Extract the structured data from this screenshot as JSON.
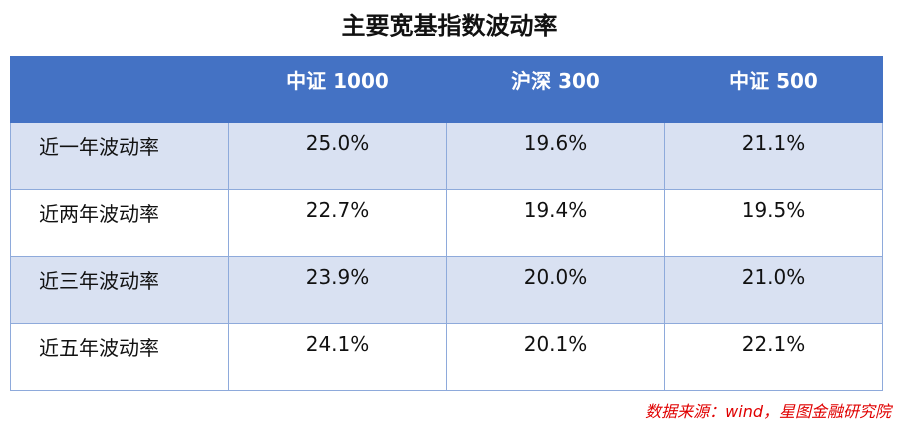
{
  "header": {
    "title": "主要宽基指数波动率"
  },
  "table": {
    "columns": [
      "中证 1000",
      "沪深 300",
      "中证 500"
    ],
    "rows": [
      {
        "label": "近一年波动率",
        "cells": [
          "25.0%",
          "19.6%",
          "21.1%"
        ]
      },
      {
        "label": "近两年波动率",
        "cells": [
          "22.7%",
          "19.4%",
          "19.5%"
        ]
      },
      {
        "label": "近三年波动率",
        "cells": [
          "23.9%",
          "20.0%",
          "21.0%"
        ]
      },
      {
        "label": "近五年波动率",
        "cells": [
          "24.1%",
          "20.1%",
          "22.1%"
        ]
      }
    ]
  },
  "footer": {
    "source": "数据来源：wind，星图金融研究院"
  }
}
